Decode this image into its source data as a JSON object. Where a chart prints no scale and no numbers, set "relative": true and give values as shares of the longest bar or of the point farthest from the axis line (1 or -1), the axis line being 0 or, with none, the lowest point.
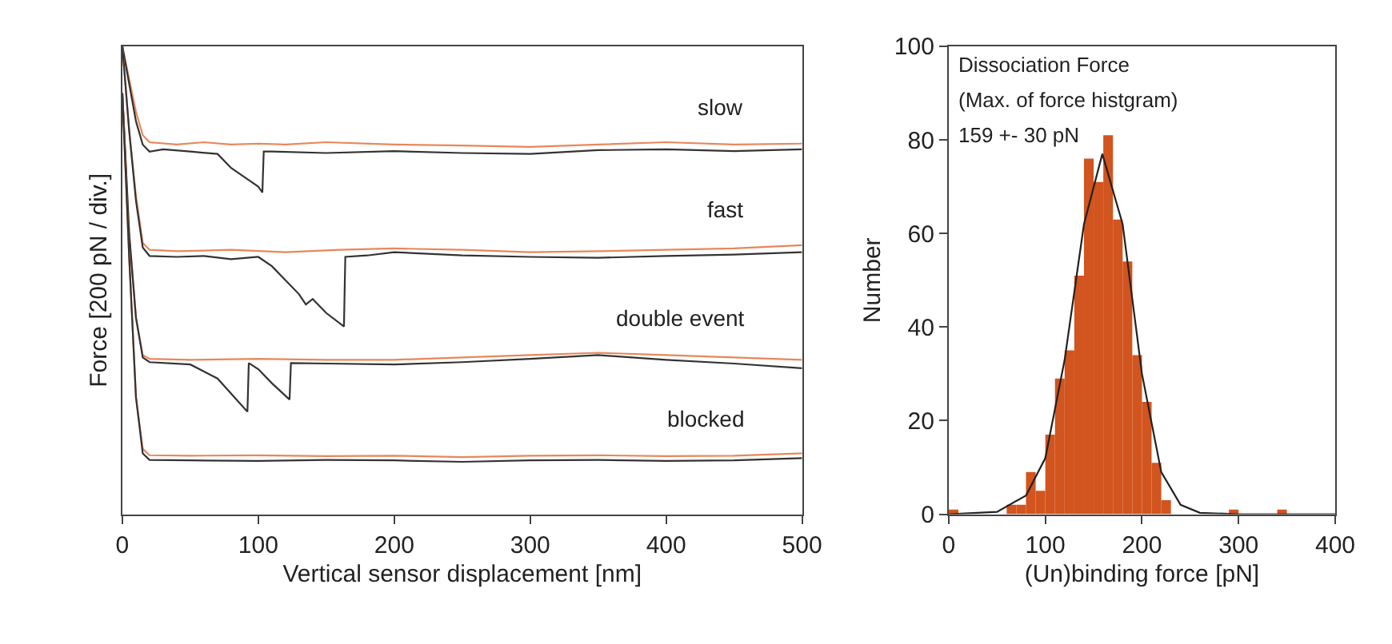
{
  "chart_data": [
    {
      "type": "line",
      "relative": true,
      "xlabel": "Vertical sensor displacement [nm]",
      "ylabel": "Force [200 pN / div.]",
      "xlim": [
        0,
        500
      ],
      "xticks": [
        0,
        100,
        200,
        300,
        400,
        500
      ],
      "marker": "none",
      "line_style": "solid",
      "series": [
        {
          "color": "#e8875a",
          "x": [
            0,
            5,
            10,
            15,
            20,
            40,
            60,
            80,
            100,
            120,
            150,
            200,
            250,
            300,
            350,
            400,
            450,
            500
          ],
          "values": [
            1,
            0.93,
            0.86,
            0.81,
            0.795,
            0.79,
            0.795,
            0.79,
            0.792,
            0.79,
            0.795,
            0.79,
            0.788,
            0.785,
            0.79,
            0.795,
            0.79,
            0.792
          ]
        },
        {
          "color": "#333333",
          "x": [
            0,
            5,
            10,
            15,
            20,
            30,
            50,
            70,
            80,
            90,
            100,
            103,
            104,
            110,
            150,
            200,
            250,
            300,
            350,
            400,
            450,
            500
          ],
          "values": [
            1,
            0.92,
            0.84,
            0.79,
            0.775,
            0.78,
            0.775,
            0.77,
            0.74,
            0.72,
            0.7,
            0.6875,
            0.775,
            0.775,
            0.772,
            0.776,
            0.772,
            0.77,
            0.778,
            0.78,
            0.776,
            0.78
          ]
        },
        {
          "color": "#e8875a",
          "x": [
            0,
            5,
            10,
            15,
            20,
            40,
            80,
            120,
            160,
            200,
            250,
            300,
            350,
            400,
            450,
            500
          ],
          "values": [
            1,
            0.82,
            0.68,
            0.58,
            0.565,
            0.562,
            0.565,
            0.56,
            0.565,
            0.568,
            0.565,
            0.56,
            0.562,
            0.565,
            0.568,
            0.575
          ]
        },
        {
          "color": "#333333",
          "x": [
            0,
            5,
            10,
            15,
            20,
            40,
            60,
            80,
            100,
            110,
            120,
            130,
            135,
            140,
            150,
            163,
            164,
            180,
            200,
            250,
            300,
            350,
            400,
            450,
            500
          ],
          "values": [
            1,
            0.82,
            0.67,
            0.57,
            0.552,
            0.55,
            0.552,
            0.545,
            0.55,
            0.53,
            0.5,
            0.47,
            0.448,
            0.46,
            0.43,
            0.401,
            0.55,
            0.553,
            0.56,
            0.553,
            0.55,
            0.548,
            0.552,
            0.555,
            0.56
          ]
        },
        {
          "color": "#e8875a",
          "x": [
            0,
            5,
            10,
            15,
            20,
            50,
            100,
            150,
            200,
            250,
            300,
            350,
            400,
            450,
            500
          ],
          "values": [
            0.9,
            0.6,
            0.42,
            0.34,
            0.332,
            0.33,
            0.332,
            0.33,
            0.33,
            0.335,
            0.34,
            0.345,
            0.34,
            0.335,
            0.33
          ]
        },
        {
          "color": "#333333",
          "x": [
            0,
            5,
            10,
            15,
            20,
            50,
            70,
            92,
            93,
            100,
            110,
            123,
            124,
            150,
            200,
            250,
            300,
            350,
            400,
            450,
            500
          ],
          "values": [
            0.9,
            0.6,
            0.42,
            0.335,
            0.325,
            0.32,
            0.29,
            0.219,
            0.323,
            0.31,
            0.28,
            0.245,
            0.323,
            0.322,
            0.32,
            0.325,
            0.332,
            0.34,
            0.33,
            0.322,
            0.312
          ]
        },
        {
          "color": "#e8875a",
          "x": [
            0,
            5,
            10,
            15,
            20,
            50,
            100,
            150,
            200,
            250,
            300,
            350,
            400,
            450,
            500
          ],
          "values": [
            0.9,
            0.55,
            0.25,
            0.14,
            0.126,
            0.125,
            0.126,
            0.124,
            0.125,
            0.122,
            0.125,
            0.126,
            0.124,
            0.125,
            0.13
          ]
        },
        {
          "color": "#333333",
          "x": [
            0,
            5,
            10,
            15,
            20,
            50,
            100,
            150,
            200,
            250,
            300,
            350,
            400,
            450,
            500
          ],
          "values": [
            0.9,
            0.55,
            0.25,
            0.13,
            0.116,
            0.115,
            0.114,
            0.116,
            0.115,
            0.112,
            0.115,
            0.116,
            0.114,
            0.115,
            0.12
          ]
        }
      ],
      "annotations": [
        "slow",
        "fast",
        "double event",
        "blocked"
      ]
    },
    {
      "type": "histogram",
      "xlabel": "(Un)binding force [pN]",
      "ylabel": "Number",
      "xlim": [
        0,
        400
      ],
      "xticks": [
        0,
        100,
        200,
        300,
        400
      ],
      "ylim": [
        0,
        100
      ],
      "yticks": [
        0,
        20,
        40,
        60,
        80,
        100
      ],
      "color": "#d2541e",
      "bins": [
        0,
        10,
        20,
        30,
        40,
        50,
        60,
        70,
        80,
        90,
        100,
        110,
        120,
        130,
        140,
        150,
        160,
        170,
        180,
        190,
        200,
        210,
        220,
        230,
        240,
        250,
        260,
        270,
        280,
        290,
        300,
        310,
        320,
        330,
        340,
        350,
        360,
        370,
        380,
        390,
        400
      ],
      "values": [
        1,
        0,
        0,
        0,
        0,
        0,
        2,
        2,
        9,
        5,
        17,
        29,
        35,
        51,
        76,
        71,
        81,
        63,
        54,
        34,
        24,
        11,
        3,
        0,
        0,
        0,
        0,
        0,
        0,
        1,
        0,
        0,
        0,
        0,
        1,
        0,
        0,
        0,
        0,
        0
      ],
      "series": [
        {
          "type": "line",
          "color": "#222222",
          "x": [
            0,
            50,
            80,
            100,
            120,
            140,
            159,
            180,
            200,
            220,
            240,
            260,
            300,
            400
          ],
          "values": [
            0,
            0.5,
            4,
            12,
            33,
            62,
            77,
            62,
            30,
            9,
            2,
            0.3,
            0,
            0
          ]
        }
      ],
      "annotations": [
        "Dissociation Force",
        "(Max. of force histgram)",
        "159 +- 30 pN"
      ]
    }
  ]
}
